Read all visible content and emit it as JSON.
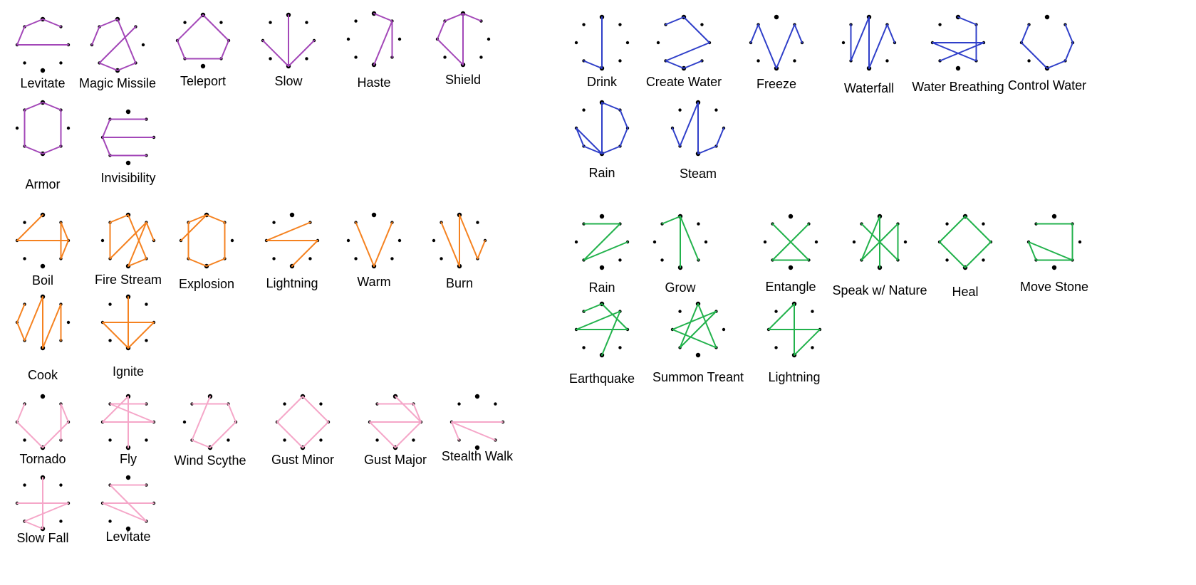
{
  "dot_color": "#000000",
  "groups": [
    {
      "element": "air-purple",
      "color": "#a347b8",
      "spells": [
        {
          "name": "Levitate",
          "icon": "glyph-levitate"
        },
        {
          "name": "Magic Missile",
          "icon": "glyph-magic-missile"
        },
        {
          "name": "Teleport",
          "icon": "glyph-teleport"
        },
        {
          "name": "Slow",
          "icon": "glyph-slow"
        },
        {
          "name": "Haste",
          "icon": "glyph-haste"
        },
        {
          "name": "Shield",
          "icon": "glyph-shield"
        },
        {
          "name": "Armor",
          "icon": "glyph-armor"
        },
        {
          "name": "Invisibility",
          "icon": "glyph-invisibility"
        }
      ]
    },
    {
      "element": "fire-orange",
      "color": "#f58220",
      "spells": [
        {
          "name": "Boil",
          "icon": "glyph-boil"
        },
        {
          "name": "Fire Stream",
          "icon": "glyph-fire-stream"
        },
        {
          "name": "Explosion",
          "icon": "glyph-explosion"
        },
        {
          "name": "Lightning",
          "icon": "glyph-lightning"
        },
        {
          "name": "Warm",
          "icon": "glyph-warm"
        },
        {
          "name": "Burn",
          "icon": "glyph-burn"
        },
        {
          "name": "Cook",
          "icon": "glyph-cook"
        },
        {
          "name": "Ignite",
          "icon": "glyph-ignite"
        }
      ]
    },
    {
      "element": "wind-pink",
      "color": "#f5a6c8",
      "spells": [
        {
          "name": "Tornado",
          "icon": "glyph-tornado"
        },
        {
          "name": "Fly",
          "icon": "glyph-fly"
        },
        {
          "name": "Wind Scythe",
          "icon": "glyph-wind-scythe"
        },
        {
          "name": "Gust Minor",
          "icon": "glyph-gust-minor"
        },
        {
          "name": "Gust Major",
          "icon": "glyph-gust-major"
        },
        {
          "name": "Stealth Walk",
          "icon": "glyph-stealth-walk"
        },
        {
          "name": "Slow Fall",
          "icon": "glyph-slow-fall"
        },
        {
          "name": "Levitate",
          "icon": "glyph-levitate-wind"
        }
      ]
    },
    {
      "element": "water-blue",
      "color": "#2f3fc9",
      "spells": [
        {
          "name": "Drink",
          "icon": "glyph-drink"
        },
        {
          "name": "Create Water",
          "icon": "glyph-create-water"
        },
        {
          "name": "Freeze",
          "icon": "glyph-freeze"
        },
        {
          "name": "Waterfall",
          "icon": "glyph-waterfall"
        },
        {
          "name": "Water Breathing",
          "icon": "glyph-water-breathing"
        },
        {
          "name": "Control Water",
          "icon": "glyph-control-water"
        },
        {
          "name": "Rain",
          "icon": "glyph-rain-water"
        },
        {
          "name": "Steam",
          "icon": "glyph-steam"
        }
      ]
    },
    {
      "element": "nature-green",
      "color": "#22b24c",
      "spells": [
        {
          "name": "Rain",
          "icon": "glyph-rain-nature"
        },
        {
          "name": "Grow",
          "icon": "glyph-grow"
        },
        {
          "name": "Entangle",
          "icon": "glyph-entangle"
        },
        {
          "name": "Speak w/ Nature",
          "icon": "glyph-speak-with-nature"
        },
        {
          "name": "Heal",
          "icon": "glyph-heal"
        },
        {
          "name": "Move Stone",
          "icon": "glyph-move-stone"
        },
        {
          "name": "Earthquake",
          "icon": "glyph-earthquake"
        },
        {
          "name": "Summon Treant",
          "icon": "glyph-summon-treant"
        },
        {
          "name": "Lightning",
          "icon": "glyph-lightning-nature"
        }
      ]
    }
  ]
}
